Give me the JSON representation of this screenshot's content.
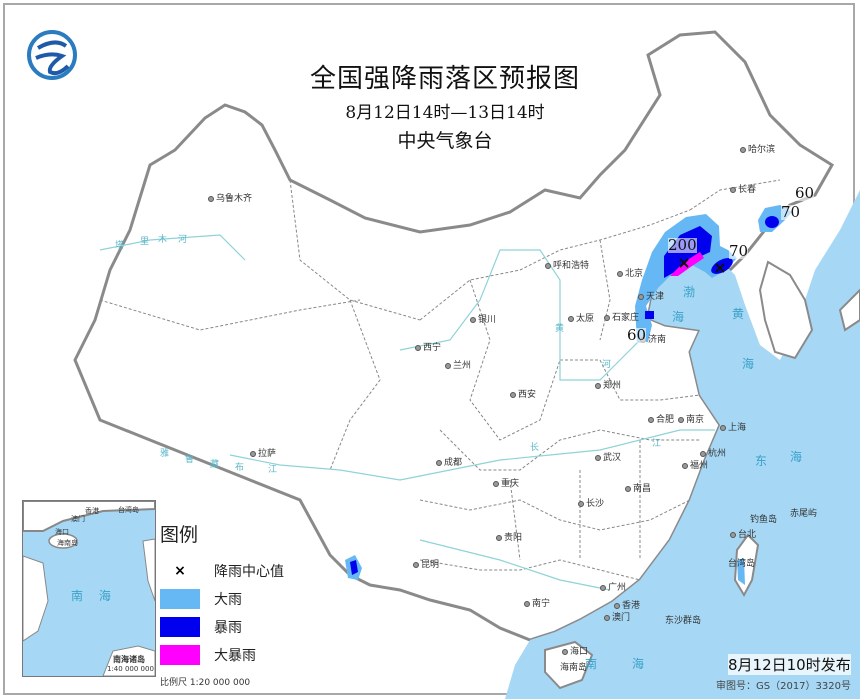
{
  "header": {
    "title": "全国强降雨落区预报图",
    "subtitle": "8月12日14时—13日14时",
    "org": "中央气象台"
  },
  "logo": {
    "icon": "cma-logo",
    "color": "#1e5aa8"
  },
  "legend": {
    "title": "图例",
    "items": [
      {
        "label": "降雨中心值",
        "icon": "x-mark"
      },
      {
        "label": "大雨",
        "color": "#66b8f5"
      },
      {
        "label": "暴雨",
        "color": "#0000ee"
      },
      {
        "label": "大暴雨",
        "color": "#ff00ff"
      }
    ],
    "scale": "比例尺  1:20 000 000"
  },
  "inset": {
    "title": "南海诸岛",
    "scale": "1:40 000 000",
    "sea": "南 海",
    "labels": [
      "香港",
      "台湾岛",
      "澳门",
      "海口",
      "海南岛"
    ]
  },
  "cities": [
    "乌鲁木齐",
    "哈尔滨",
    "长春",
    "呼和浩特",
    "北京",
    "天津",
    "石家庄",
    "太原",
    "济南",
    "银川",
    "西宁",
    "兰州",
    "西安",
    "郑州",
    "合肥",
    "南京",
    "上海",
    "杭州",
    "武汉",
    "南昌",
    "长沙",
    "成都",
    "重庆",
    "贵阳",
    "昆明",
    "拉萨",
    "南宁",
    "广州",
    "香港",
    "澳门",
    "福州",
    "台北",
    "海口"
  ],
  "places": [
    "台湾岛",
    "海南岛",
    "钓鱼岛",
    "赤尾屿",
    "东沙群岛"
  ],
  "seas": [
    "渤",
    "海",
    "黄",
    "海",
    "东",
    "海",
    "南",
    "海"
  ],
  "rivers": [
    "黄",
    "河",
    "长",
    "江",
    "雅",
    "鲁",
    "藏",
    "布",
    "江",
    "塔",
    "里",
    "木",
    "河"
  ],
  "contours": [
    "200",
    "70",
    "60",
    "60",
    "70"
  ],
  "footer": {
    "issued": "8月12日10时发布",
    "review": "审图号：GS（2017）3320号"
  },
  "colors": {
    "sea": "#a6d8f5",
    "heavy_rain": "#66b8f5",
    "rainstorm": "#0000ee",
    "heavy_rainstorm": "#ff00ff"
  }
}
